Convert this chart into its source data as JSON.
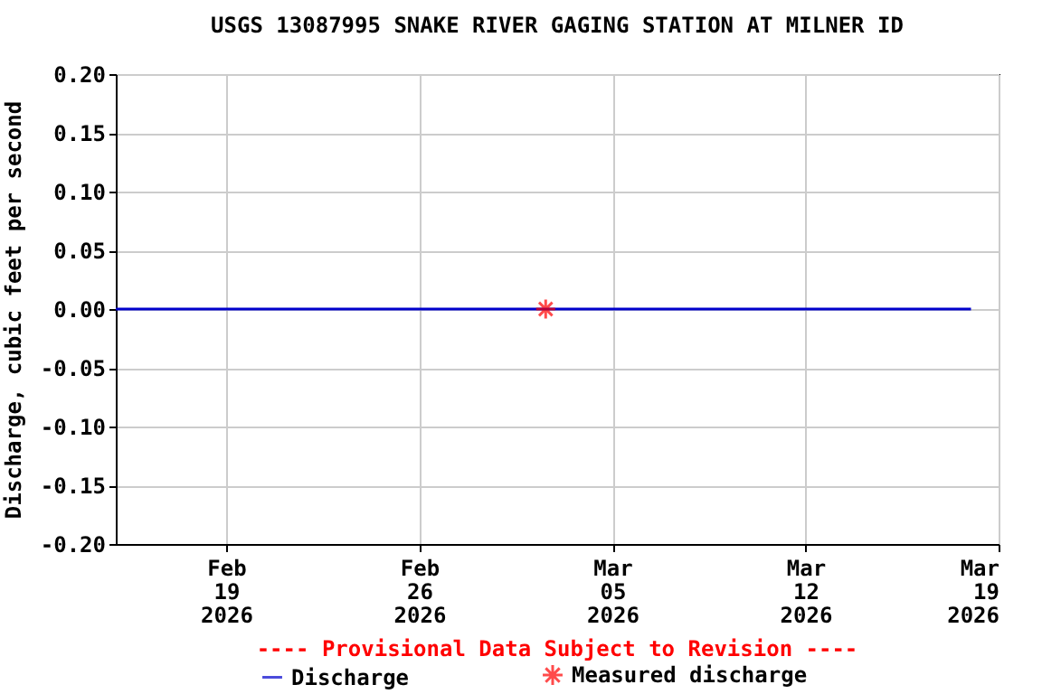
{
  "chart_data": {
    "type": "line",
    "title": "USGS 13087995 SNAKE RIVER GAGING STATION AT MILNER ID",
    "ylabel": "Discharge, cubic feet per second",
    "annotations": [
      "---- Provisional Data Subject to Revision ----"
    ],
    "series": [
      {
        "name": "Discharge",
        "type": "line",
        "color": "#0000cc",
        "x": [
          "2026-02-15T00:00",
          "2026-03-18T00:00"
        ],
        "values": [
          0,
          0
        ]
      },
      {
        "name": "Measured discharge",
        "type": "scatter",
        "marker": "cross",
        "color": "#ff0000",
        "x": [
          "2026-03-02T14:00"
        ],
        "values": [
          0
        ]
      }
    ],
    "xlim": [
      "2026-02-15T00:00",
      "2026-03-19T00:00"
    ],
    "xticks": [
      {
        "value": "2026-02-19",
        "label": "Feb\n19\n2026"
      },
      {
        "value": "2026-02-26",
        "label": "Feb\n26\n2026"
      },
      {
        "value": "2026-03-05",
        "label": "Mar\n05\n2026"
      },
      {
        "value": "2026-03-12",
        "label": "Mar\n12\n2026"
      },
      {
        "value": "2026-03-19",
        "label": "Mar\n19\n2026"
      }
    ],
    "ylim": [
      -0.2,
      0.2
    ],
    "yticks": [
      {
        "value": -0.2,
        "label": "-0.20"
      },
      {
        "value": -0.15,
        "label": "-0.15"
      },
      {
        "value": -0.1,
        "label": "-0.10"
      },
      {
        "value": -0.05,
        "label": "-0.05"
      },
      {
        "value": 0,
        "label": "0.00"
      },
      {
        "value": 0.05,
        "label": "0.05"
      },
      {
        "value": 0.1,
        "label": "0.10"
      },
      {
        "value": 0.15,
        "label": "0.15"
      },
      {
        "value": 0.2,
        "label": "0.20"
      }
    ],
    "grid": true,
    "legend": "bottom"
  }
}
